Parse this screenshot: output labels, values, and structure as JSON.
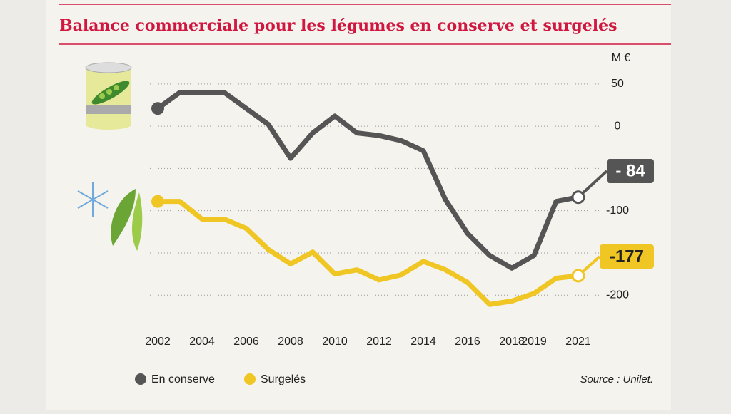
{
  "chart_data": {
    "type": "line",
    "title": "Balance commerciale pour les légumes en conserve et surgelés",
    "y_unit": "M €",
    "source": "Source : Unilet.",
    "x": [
      2002,
      2003,
      2004,
      2005,
      2006,
      2007,
      2008,
      2009,
      2010,
      2011,
      2012,
      2013,
      2014,
      2015,
      2016,
      2017,
      2018,
      2019,
      2020,
      2021
    ],
    "series": [
      {
        "name": "En conserve",
        "color": "#555555",
        "values": [
          21,
          40,
          40,
          40,
          21,
          2,
          -38,
          -8,
          12,
          -8,
          -11,
          -17,
          -29,
          -87,
          -127,
          -153,
          -168,
          -153,
          -89,
          -84
        ],
        "value_labels": [
          null,
          null,
          null,
          null,
          null,
          null,
          null,
          null,
          null,
          null,
          null,
          null,
          null,
          null,
          null,
          null,
          null,
          null,
          null,
          "- 84"
        ]
      },
      {
        "name": "Surgelés",
        "color": "#efc623",
        "values": [
          -89,
          -89,
          -110,
          -110,
          -121,
          -146,
          -163,
          -149,
          -175,
          -170,
          -182,
          -176,
          -160,
          -170,
          -185,
          -211,
          -207,
          -198,
          -180,
          -177
        ],
        "value_labels": [
          null,
          null,
          null,
          null,
          null,
          null,
          null,
          null,
          null,
          null,
          null,
          null,
          null,
          null,
          null,
          null,
          null,
          null,
          null,
          "-177"
        ]
      }
    ],
    "xlim": [
      2002,
      2021
    ],
    "xticks": [
      2002,
      2004,
      2006,
      2008,
      2010,
      2012,
      2014,
      2016,
      2018,
      2019,
      2021
    ],
    "ylim": [
      -215,
      60
    ],
    "yticks": [
      50,
      0,
      -100,
      -200
    ],
    "gridlines": [
      50,
      0,
      -50,
      -100,
      -150,
      -200
    ],
    "grid": true
  }
}
